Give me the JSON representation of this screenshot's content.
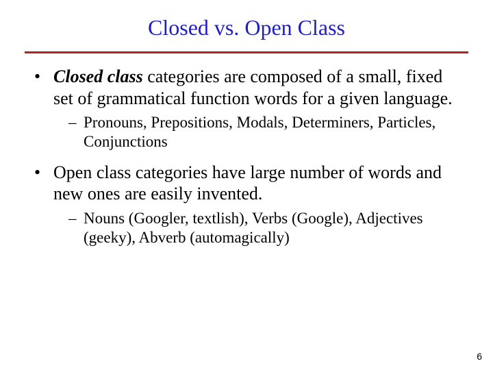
{
  "colors": {
    "title": "#1f1fbf",
    "rule": "#b22222",
    "body_text": "#000000",
    "pagenum": "#000000",
    "background": "#ffffff"
  },
  "title": "Closed vs. Open Class",
  "bullets": [
    {
      "emphasis": "Closed class",
      "rest": " categories are composed of a small, fixed set of grammatical function words for a given language.",
      "sub": "Pronouns, Prepositions, Modals, Determiners, Particles, Conjunctions"
    },
    {
      "full": "Open class categories have large number of words and new ones are easily invented.",
      "sub": "Nouns (Googler, textlish), Verbs (Google), Adjectives (geeky), Abverb (automagically)"
    }
  ],
  "page_number": "6"
}
